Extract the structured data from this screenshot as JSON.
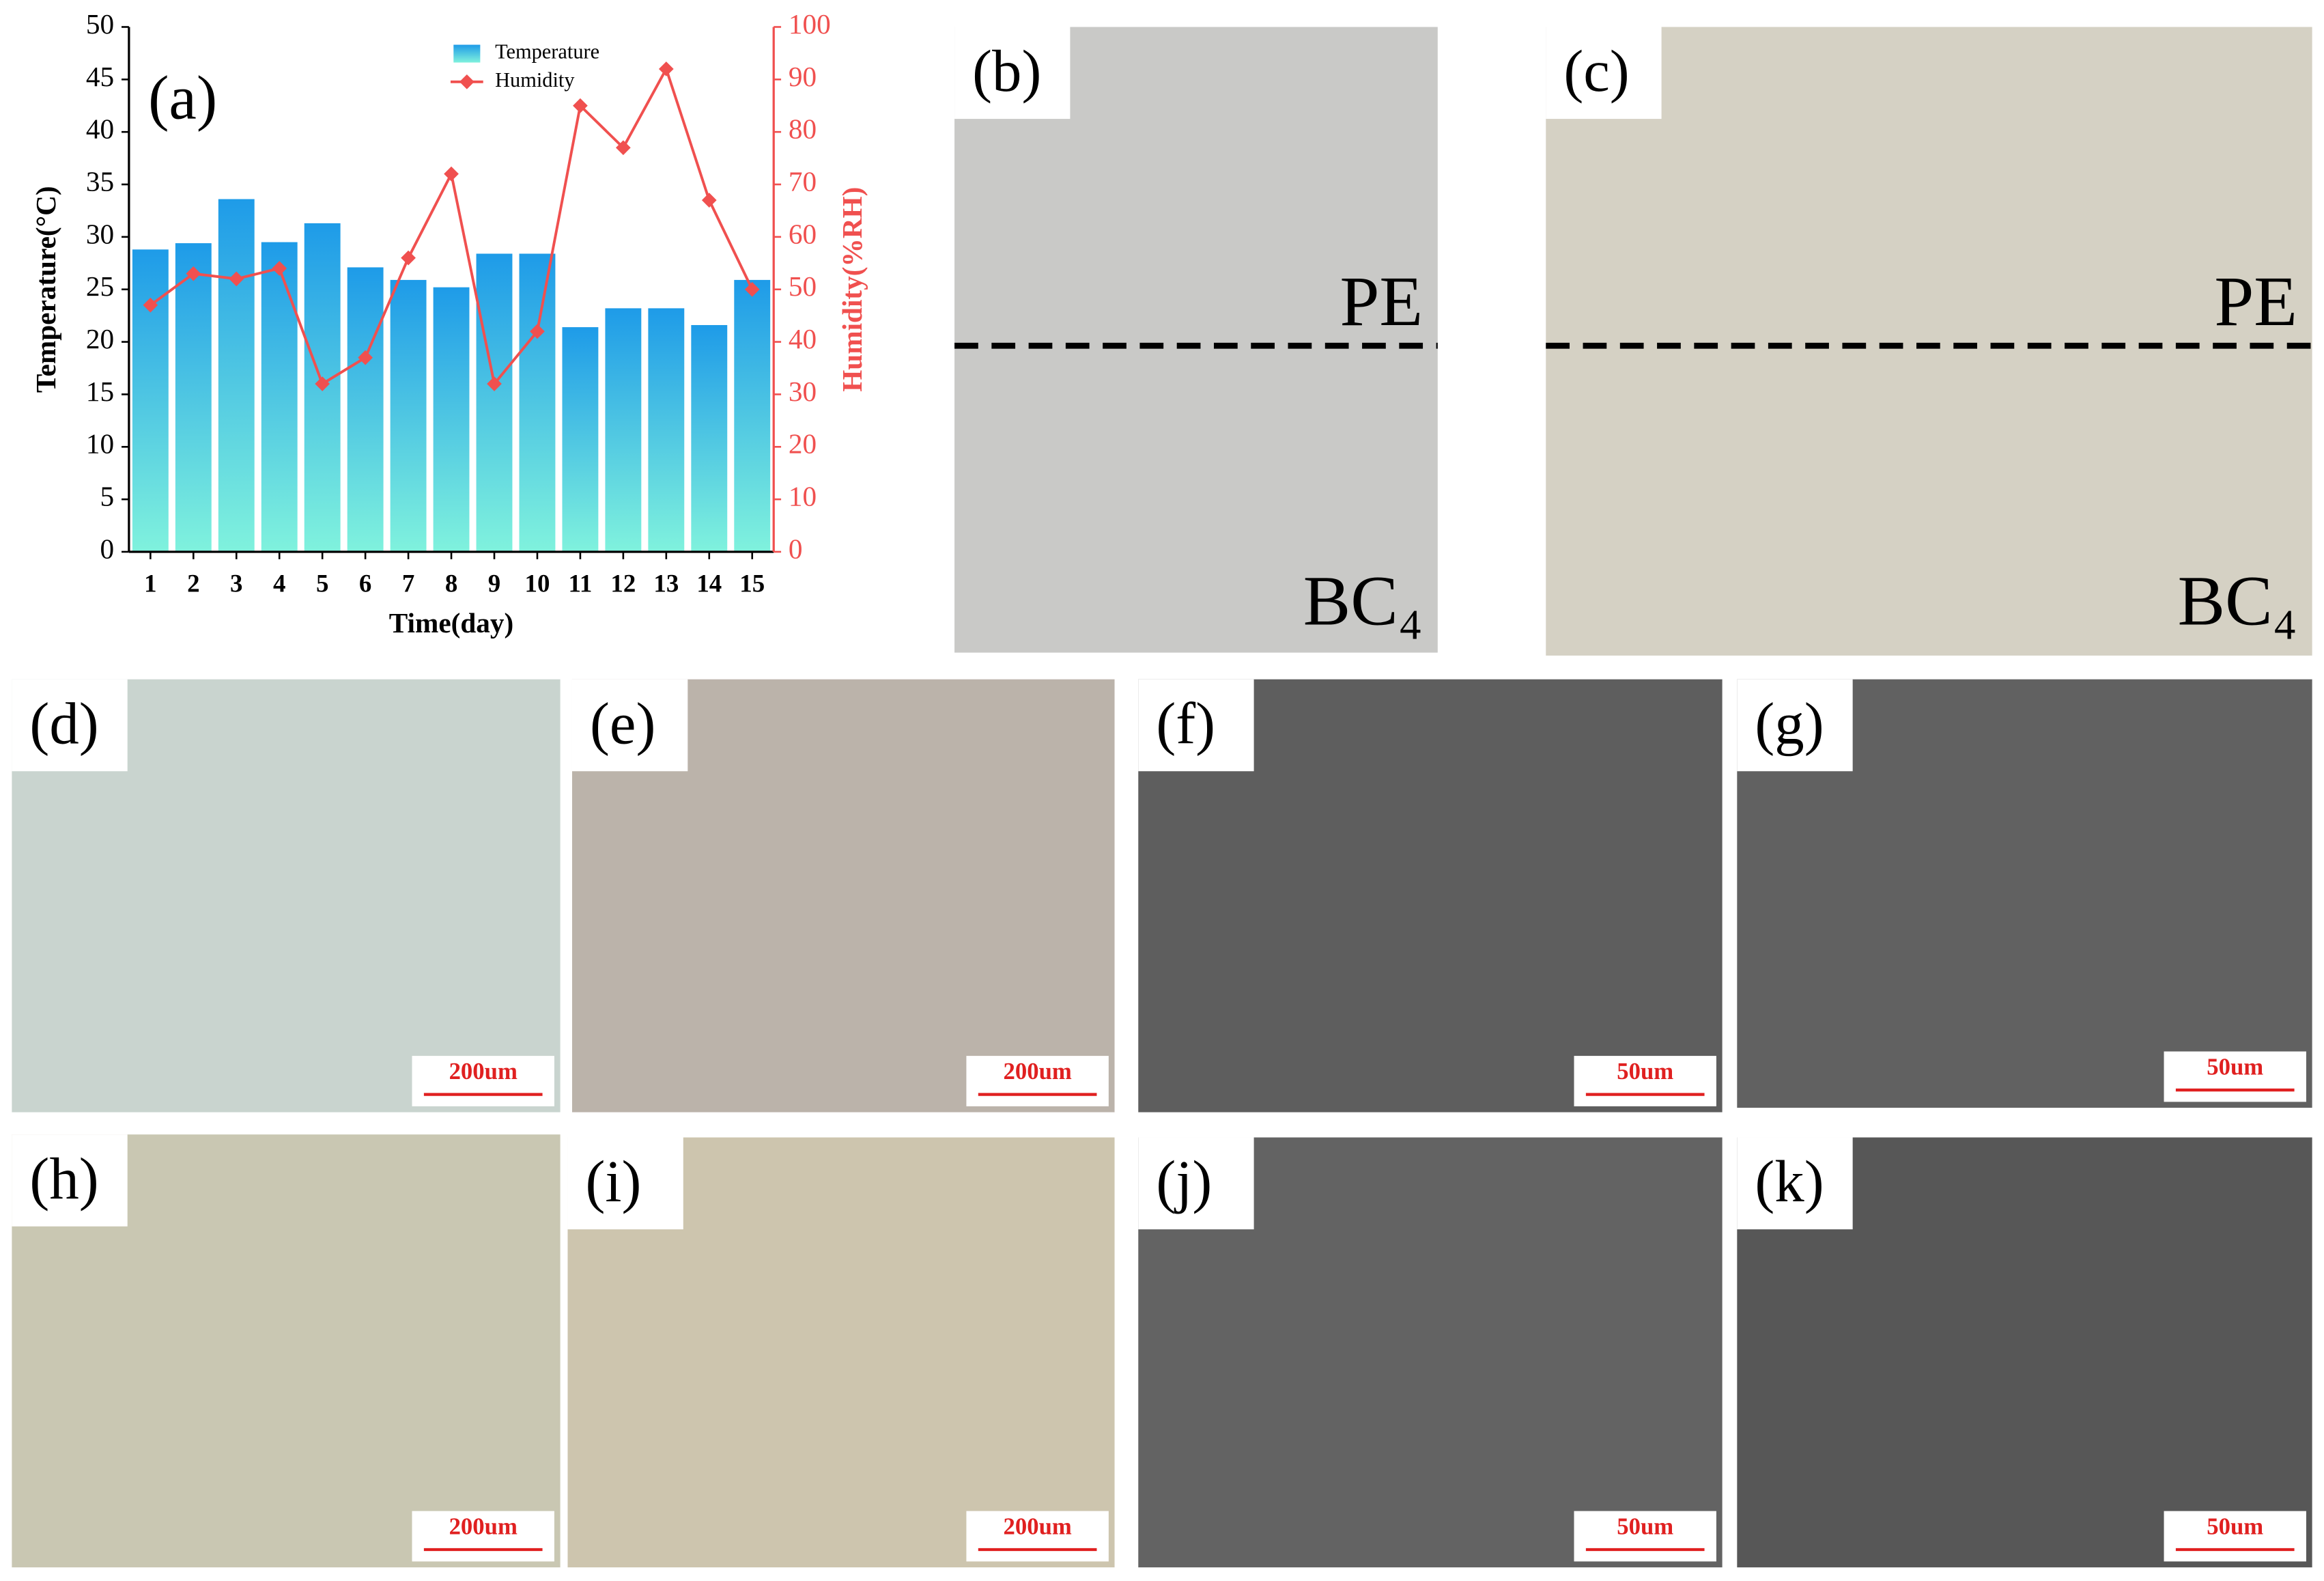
{
  "chart_data": {
    "type": "bar-line",
    "panel_label": "(a)",
    "x_label": "Time(day)",
    "y_label": "Temperature(°C)",
    "y2_label": "Humidity(%RH)",
    "categories": [
      "1",
      "2",
      "3",
      "4",
      "5",
      "6",
      "7",
      "8",
      "9",
      "10",
      "11",
      "12",
      "13",
      "14",
      "15"
    ],
    "series": [
      {
        "name": "Temperature",
        "type": "bar",
        "color": "#1e9be8",
        "values": [
          28.8,
          29.4,
          33.6,
          29.5,
          31.3,
          27.1,
          25.9,
          25.2,
          28.4,
          28.4,
          21.4,
          23.2,
          23.2,
          21.6,
          25.9
        ]
      },
      {
        "name": "Humidity",
        "type": "line",
        "axis": "y2",
        "color": "#f0504f",
        "values": [
          47,
          53,
          52,
          54,
          32,
          37,
          56,
          72,
          32,
          42,
          85,
          77,
          92,
          67,
          50
        ]
      }
    ],
    "ylim": [
      0,
      50
    ],
    "yticks": [
      0,
      5,
      10,
      15,
      20,
      25,
      30,
      35,
      40,
      45,
      50
    ],
    "y2lim": [
      0,
      100
    ],
    "y2ticks": [
      0,
      10,
      20,
      30,
      40,
      50,
      60,
      70,
      80,
      90,
      100
    ]
  },
  "panels": [
    {
      "label": "(b)",
      "texts": [
        "PE",
        "BC₄"
      ]
    },
    {
      "label": "(c)",
      "texts": [
        "PE",
        "BC₄"
      ]
    },
    {
      "label": "(d)",
      "scale_bar": "200um"
    },
    {
      "label": "(e)",
      "scale_bar": "200um"
    },
    {
      "label": "(f)",
      "scale_bar": "50um"
    },
    {
      "label": "(g)",
      "scale_bar": "50um"
    },
    {
      "label": "(h)",
      "scale_bar": "200um"
    },
    {
      "label": "(i)",
      "scale_bar": "200um"
    },
    {
      "label": "(j)",
      "scale_bar": "50um"
    },
    {
      "label": "(k)",
      "scale_bar": "50um"
    }
  ]
}
